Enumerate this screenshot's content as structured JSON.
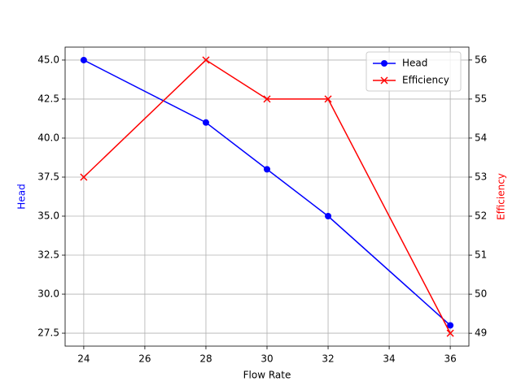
{
  "chart_data": {
    "type": "line",
    "xlabel": "Flow Rate",
    "ylabel": "Head",
    "y2label": "Efficiency",
    "x": [
      24,
      28,
      30,
      32,
      36
    ],
    "series": [
      {
        "name": "Head",
        "color": "#0000ff",
        "marker": "o",
        "values": [
          45,
          41,
          38,
          35,
          28
        ]
      },
      {
        "name": "Efficiency",
        "color": "#ff0000",
        "marker": "x",
        "axis": "y2",
        "values": [
          53,
          56,
          55,
          55,
          49
        ]
      }
    ],
    "xlim": [
      23.39,
      36.61
    ],
    "xticks": [
      24,
      26,
      28,
      30,
      32,
      34,
      36
    ],
    "ylim": [
      26.67,
      45.83
    ],
    "yticks": [
      {
        "value": 27.5,
        "label": "27.5"
      },
      {
        "value": 30,
        "label": "30.0"
      },
      {
        "value": 32.5,
        "label": "32.5"
      },
      {
        "value": 35,
        "label": "35.0"
      },
      {
        "value": 37.5,
        "label": "37.5"
      },
      {
        "value": 40,
        "label": "40.0"
      },
      {
        "value": 42.5,
        "label": "42.5"
      },
      {
        "value": 45,
        "label": "45.0"
      }
    ],
    "y2lim": [
      48.67,
      56.33
    ],
    "y2ticks": [
      49,
      50,
      51,
      52,
      53,
      54,
      55,
      56
    ],
    "grid": true,
    "legend": "upper right"
  }
}
